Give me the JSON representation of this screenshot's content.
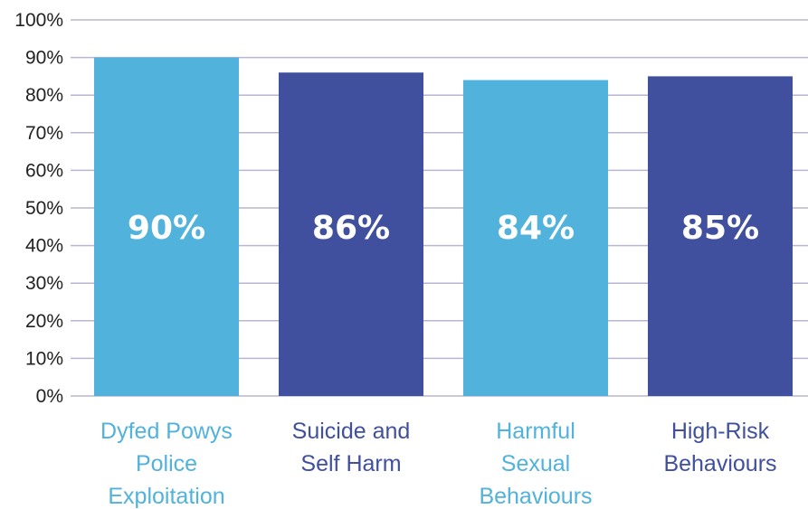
{
  "chart_data": {
    "type": "bar",
    "categories": [
      [
        "Dyfed Powys",
        "Police",
        "Exploitation"
      ],
      [
        "Suicide and",
        "Self Harm"
      ],
      [
        "Harmful",
        "Sexual",
        "Behaviours"
      ],
      [
        "High-Risk",
        "Behaviours"
      ]
    ],
    "values": [
      90,
      86,
      84,
      85
    ],
    "value_labels": [
      "90%",
      "86%",
      "84%",
      "85%"
    ],
    "bar_colors": [
      "#51b2db",
      "#40509e",
      "#51b2db",
      "#40509e"
    ],
    "label_colors": [
      "#51b2db",
      "#40509e",
      "#51b2db",
      "#40509e"
    ],
    "ylim": [
      0,
      100
    ],
    "yticks": [
      0,
      10,
      20,
      30,
      40,
      50,
      60,
      70,
      80,
      90,
      100
    ],
    "ytick_labels": [
      "0%",
      "10%",
      "20%",
      "30%",
      "40%",
      "50%",
      "60%",
      "70%",
      "80%",
      "90%",
      "100%"
    ],
    "grid": true,
    "legend": "none",
    "title": "",
    "xlabel": "",
    "ylabel": ""
  }
}
